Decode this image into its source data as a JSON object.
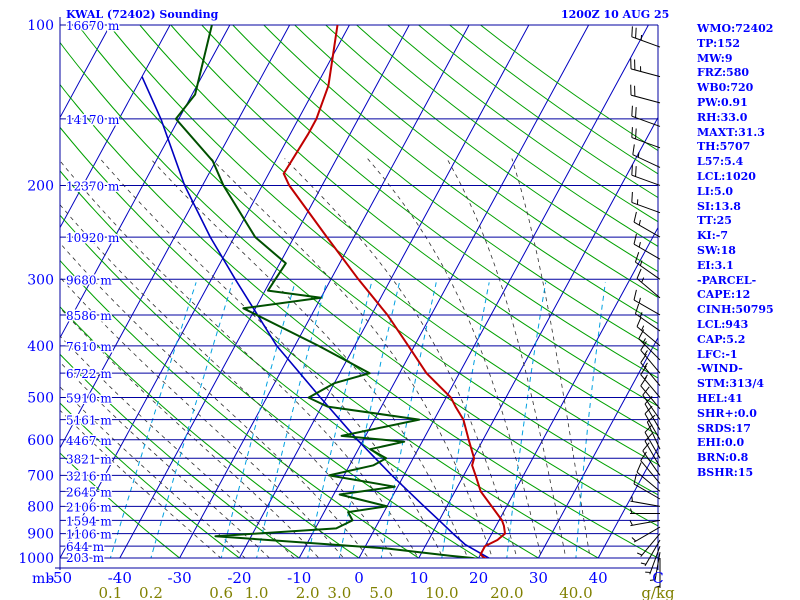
{
  "header": {
    "station": "KWAL (72402) Sounding",
    "valid": "1200Z 10 AUG 25"
  },
  "indices": [
    "WMO:72402",
    "TP:152",
    "MW:9",
    "FRZ:580",
    "WB0:720",
    "PW:0.91",
    "RH:33.0",
    "MAXT:31.3",
    "TH:5707",
    "L57:5.4",
    "LCL:1020",
    "LI:5.0",
    "SI:13.8",
    "TT:25",
    "KI:-7",
    "SW:18",
    "EI:3.1",
    "-PARCEL-",
    "CAPE:12",
    "CINH:50795",
    "LCL:943",
    "CAP:5.2",
    "LFC:-1",
    "-WIND-",
    "STM:313/4",
    "HEL:41",
    "SHR+:0.0",
    "SRDS:17",
    "EHI:0.0",
    "BRN:0.8",
    "BSHR:15"
  ],
  "colors": {
    "isobar": "#0000a0",
    "isotherm": "#0000c0",
    "dry_adiabat": "#00a000",
    "moist_adiabat": "#303030",
    "mixing_ratio": "#00a0e0",
    "temperature": "#c00000",
    "dewpoint": "#005000",
    "parcel": "#0000c0",
    "axis_text": "#0000ff",
    "mixing_text": "#808000"
  },
  "chart_data": {
    "type": "skew-t",
    "xlim": [
      -50,
      50
    ],
    "ylim": [
      1000,
      100
    ],
    "pressure_ticks": [
      {
        "p": 100,
        "label": "100"
      },
      {
        "p": 200,
        "label": "200"
      },
      {
        "p": 300,
        "label": "300"
      },
      {
        "p": 400,
        "label": "400"
      },
      {
        "p": 500,
        "label": "500"
      },
      {
        "p": 600,
        "label": "600"
      },
      {
        "p": 700,
        "label": "700"
      },
      {
        "p": 800,
        "label": "800"
      },
      {
        "p": 900,
        "label": "900"
      },
      {
        "p": 1000,
        "label": "1000"
      }
    ],
    "temp_ticks": [
      {
        "t": -50,
        "label": "-50"
      },
      {
        "t": -40,
        "label": "-40"
      },
      {
        "t": -30,
        "label": "-30"
      },
      {
        "t": -20,
        "label": "-20"
      },
      {
        "t": -10,
        "label": "-10"
      },
      {
        "t": 0,
        "label": "0"
      },
      {
        "t": 10,
        "label": "10"
      },
      {
        "t": 20,
        "label": "20"
      },
      {
        "t": 30,
        "label": "30"
      },
      {
        "t": 40,
        "label": "40"
      }
    ],
    "mixing_ticks": [
      {
        "w": 0.1,
        "label": "0.1"
      },
      {
        "w": 0.2,
        "label": "0.2"
      },
      {
        "w": 0.6,
        "label": "0.6"
      },
      {
        "w": 1.0,
        "label": "1.0"
      },
      {
        "w": 2.0,
        "label": "2.0"
      },
      {
        "w": 3.0,
        "label": "3.0"
      },
      {
        "w": 5.0,
        "label": "5.0"
      },
      {
        "w": 10.0,
        "label": "10.0"
      },
      {
        "w": 20.0,
        "label": "20.0"
      },
      {
        "w": 40.0,
        "label": "40.0"
      }
    ],
    "mixing_unit": "g/kg",
    "temp_unit": "C",
    "pressure_unit": "mb",
    "height_labels": [
      {
        "p": 100,
        "label": "16670 m"
      },
      {
        "p": 150,
        "label": "14170 m"
      },
      {
        "p": 200,
        "label": "12370 m"
      },
      {
        "p": 250,
        "label": "10920 m"
      },
      {
        "p": 300,
        "label": "9680 m"
      },
      {
        "p": 350,
        "label": "8586 m"
      },
      {
        "p": 400,
        "label": "7610 m"
      },
      {
        "p": 450,
        "label": "6722 m"
      },
      {
        "p": 500,
        "label": "5910 m"
      },
      {
        "p": 550,
        "label": "5161 m"
      },
      {
        "p": 600,
        "label": "4467 m"
      },
      {
        "p": 650,
        "label": "3821 m"
      },
      {
        "p": 700,
        "label": "3216 m"
      },
      {
        "p": 750,
        "label": "2645 m"
      },
      {
        "p": 800,
        "label": "2106 m"
      },
      {
        "p": 850,
        "label": "1594 m"
      },
      {
        "p": 900,
        "label": "1106 m"
      },
      {
        "p": 950,
        "label": "644 m"
      },
      {
        "p": 1000,
        "label": "203 m"
      }
    ],
    "temperature": [
      [
        1015,
        23.0
      ],
      [
        1000,
        21.0
      ],
      [
        985,
        20.0
      ],
      [
        950,
        20.0
      ],
      [
        925,
        21.5
      ],
      [
        900,
        22.2
      ],
      [
        870,
        21.3
      ],
      [
        850,
        20.5
      ],
      [
        800,
        17.5
      ],
      [
        750,
        14.3
      ],
      [
        700,
        12.0
      ],
      [
        670,
        10.5
      ],
      [
        650,
        10.2
      ],
      [
        600,
        7.6
      ],
      [
        550,
        4.9
      ],
      [
        520,
        2.4
      ],
      [
        500,
        0.8
      ],
      [
        450,
        -5.5
      ],
      [
        400,
        -11.0
      ],
      [
        350,
        -17.3
      ],
      [
        300,
        -25.4
      ],
      [
        250,
        -34.5
      ],
      [
        200,
        -45.5
      ],
      [
        190,
        -47.5
      ],
      [
        160,
        -47.0
      ],
      [
        150,
        -47.0
      ],
      [
        130,
        -48.0
      ],
      [
        100,
        -52.0
      ]
    ],
    "dewpoint": [
      [
        1015,
        22.0
      ],
      [
        1000,
        19.0
      ],
      [
        990,
        15.0
      ],
      [
        960,
        4.0
      ],
      [
        910,
        -26.0
      ],
      [
        880,
        -6.5
      ],
      [
        850,
        -4.5
      ],
      [
        820,
        -6.0
      ],
      [
        800,
        0.0
      ],
      [
        760,
        -9.0
      ],
      [
        735,
        -0.5
      ],
      [
        700,
        -12.5
      ],
      [
        670,
        -6.0
      ],
      [
        650,
        -4.5
      ],
      [
        625,
        -8.0
      ],
      [
        605,
        -3.0
      ],
      [
        590,
        -14.0
      ],
      [
        550,
        -2.5
      ],
      [
        520,
        -19.0
      ],
      [
        500,
        -23.0
      ],
      [
        470,
        -20.0
      ],
      [
        450,
        -15.0
      ],
      [
        400,
        -26.0
      ],
      [
        340,
        -42.0
      ],
      [
        325,
        -30.0
      ],
      [
        315,
        -39.5
      ],
      [
        280,
        -39.0
      ],
      [
        250,
        -46.5
      ],
      [
        200,
        -56.5
      ],
      [
        180,
        -60.5
      ],
      [
        150,
        -70.5
      ],
      [
        135,
        -69.5
      ],
      [
        100,
        -73.0
      ]
    ],
    "parcel": [
      [
        1015,
        23.0
      ],
      [
        943,
        16.5
      ],
      [
        900,
        13.5
      ],
      [
        850,
        10.0
      ],
      [
        800,
        6.2
      ],
      [
        700,
        -2.0
      ],
      [
        600,
        -11.0
      ],
      [
        500,
        -21.0
      ],
      [
        400,
        -33.0
      ],
      [
        300,
        -46.0
      ],
      [
        250,
        -54.0
      ],
      [
        200,
        -63.0
      ],
      [
        150,
        -73.0
      ],
      [
        125,
        -80.0
      ]
    ],
    "winds": [
      {
        "p": 110,
        "dir": 290,
        "spd": 25
      },
      {
        "p": 125,
        "dir": 285,
        "spd": 25
      },
      {
        "p": 140,
        "dir": 285,
        "spd": 20
      },
      {
        "p": 155,
        "dir": 290,
        "spd": 20
      },
      {
        "p": 170,
        "dir": 290,
        "spd": 20
      },
      {
        "p": 185,
        "dir": 295,
        "spd": 15
      },
      {
        "p": 200,
        "dir": 290,
        "spd": 20
      },
      {
        "p": 225,
        "dir": 290,
        "spd": 15
      },
      {
        "p": 250,
        "dir": 300,
        "spd": 15
      },
      {
        "p": 275,
        "dir": 300,
        "spd": 15
      },
      {
        "p": 300,
        "dir": 305,
        "spd": 15
      },
      {
        "p": 325,
        "dir": 310,
        "spd": 15
      },
      {
        "p": 350,
        "dir": 300,
        "spd": 15
      },
      {
        "p": 375,
        "dir": 305,
        "spd": 15
      },
      {
        "p": 400,
        "dir": 310,
        "spd": 15
      },
      {
        "p": 425,
        "dir": 315,
        "spd": 15
      },
      {
        "p": 450,
        "dir": 320,
        "spd": 15
      },
      {
        "p": 475,
        "dir": 320,
        "spd": 15
      },
      {
        "p": 500,
        "dir": 320,
        "spd": 15
      },
      {
        "p": 525,
        "dir": 320,
        "spd": 10
      },
      {
        "p": 550,
        "dir": 325,
        "spd": 10
      },
      {
        "p": 575,
        "dir": 330,
        "spd": 10
      },
      {
        "p": 600,
        "dir": 330,
        "spd": 10
      },
      {
        "p": 625,
        "dir": 335,
        "spd": 10
      },
      {
        "p": 650,
        "dir": 330,
        "spd": 10
      },
      {
        "p": 675,
        "dir": 330,
        "spd": 10
      },
      {
        "p": 700,
        "dir": 325,
        "spd": 10
      },
      {
        "p": 725,
        "dir": 320,
        "spd": 10
      },
      {
        "p": 750,
        "dir": 310,
        "spd": 10
      },
      {
        "p": 775,
        "dir": 300,
        "spd": 10
      },
      {
        "p": 800,
        "dir": 280,
        "spd": 5
      },
      {
        "p": 825,
        "dir": 270,
        "spd": 5
      },
      {
        "p": 850,
        "dir": 260,
        "spd": 5
      },
      {
        "p": 875,
        "dir": 240,
        "spd": 5
      },
      {
        "p": 900,
        "dir": 220,
        "spd": 5
      },
      {
        "p": 925,
        "dir": 210,
        "spd": 5
      },
      {
        "p": 950,
        "dir": 200,
        "spd": 5
      },
      {
        "p": 975,
        "dir": 190,
        "spd": 5
      },
      {
        "p": 1000,
        "dir": 180,
        "spd": 5
      }
    ]
  }
}
